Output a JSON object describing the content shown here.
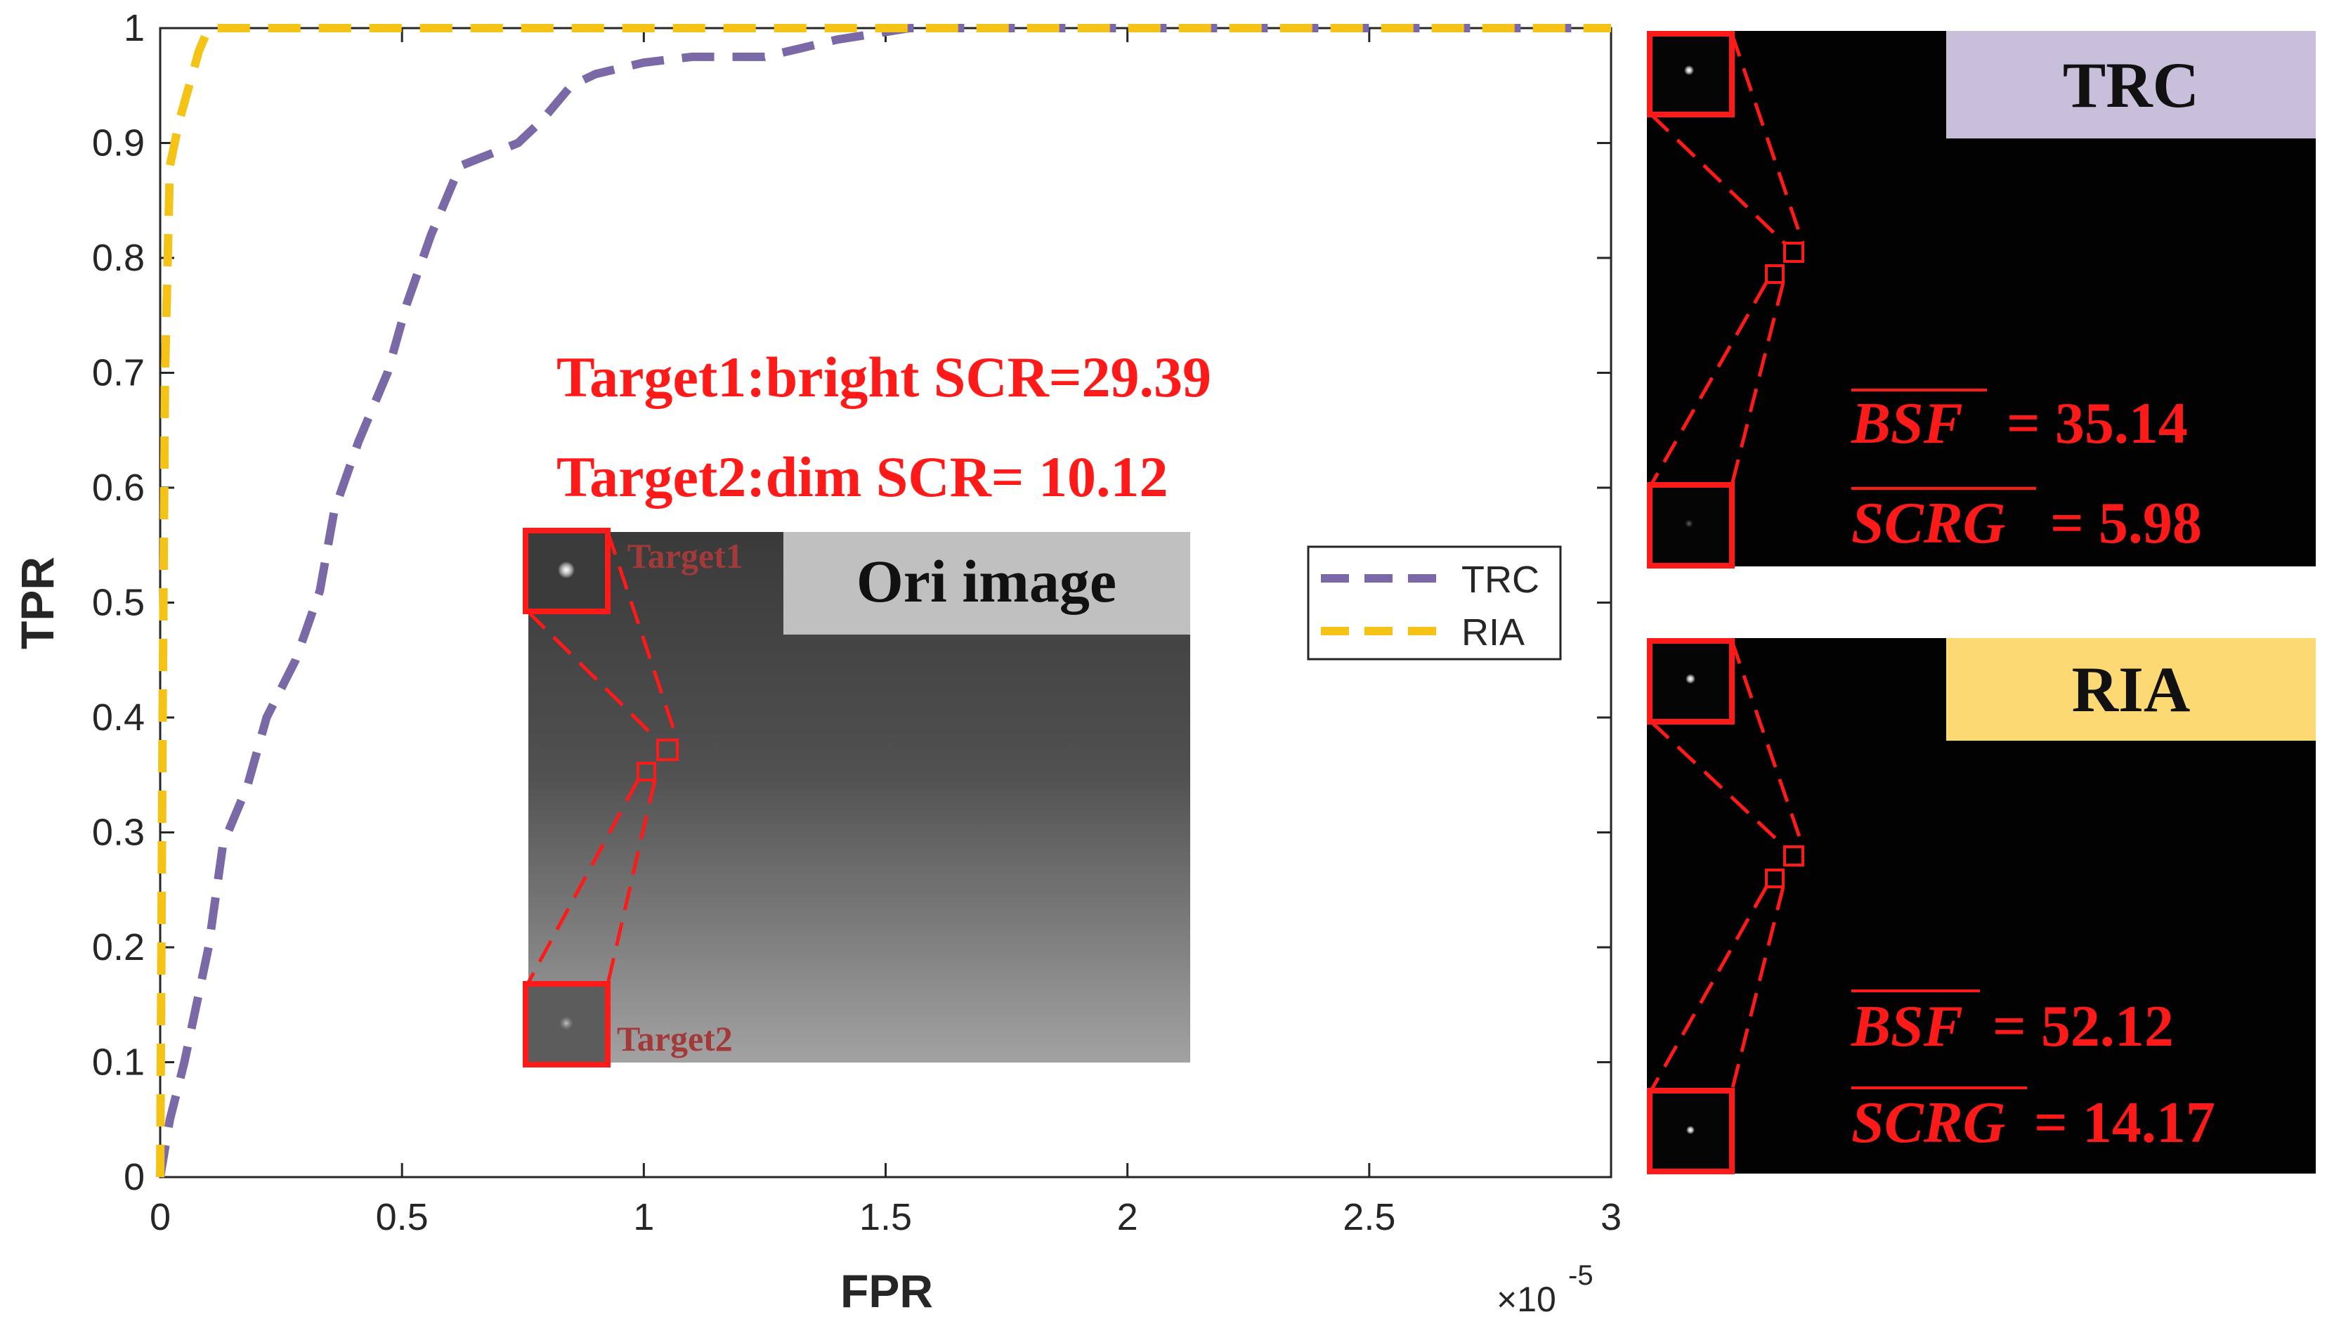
{
  "chart_data": {
    "type": "line",
    "xlabel": "FPR",
    "ylabel": "TPR",
    "x_exponent_base": "×10",
    "x_exponent_power": "-5",
    "xlim": [
      0,
      3
    ],
    "ylim": [
      0,
      1
    ],
    "x_ticks": [
      0,
      0.5,
      1,
      1.5,
      2,
      2.5,
      3
    ],
    "x_tick_labels": [
      "0",
      "0.5",
      "1",
      "1.5",
      "2",
      "2.5",
      "3"
    ],
    "y_ticks": [
      0,
      0.1,
      0.2,
      0.3,
      0.4,
      0.5,
      0.6,
      0.7,
      0.8,
      0.9,
      1
    ],
    "y_tick_labels": [
      "0",
      "0.1",
      "0.2",
      "0.3",
      "0.4",
      "0.5",
      "0.6",
      "0.7",
      "0.8",
      "0.9",
      "1"
    ],
    "grid": false,
    "legend_position": "right-middle",
    "series": [
      {
        "name": "TRC",
        "color": "#7b68a6",
        "x": [
          0,
          0.02,
          0.05,
          0.1,
          0.13,
          0.18,
          0.22,
          0.28,
          0.33,
          0.36,
          0.41,
          0.47,
          0.51,
          0.56,
          0.62,
          0.68,
          0.74,
          0.79,
          0.85,
          0.9,
          1.0,
          1.1,
          1.25,
          1.4,
          1.55,
          3.0
        ],
        "y": [
          0,
          0.05,
          0.1,
          0.2,
          0.29,
          0.34,
          0.4,
          0.45,
          0.51,
          0.58,
          0.64,
          0.7,
          0.76,
          0.82,
          0.88,
          0.89,
          0.9,
          0.92,
          0.95,
          0.96,
          0.97,
          0.975,
          0.975,
          0.99,
          1.0,
          1.0
        ]
      },
      {
        "name": "RIA",
        "color": "#f5c216",
        "x": [
          0,
          0.005,
          0.01,
          0.02,
          0.03,
          0.04,
          0.06,
          0.08,
          0.1,
          3.0
        ],
        "y": [
          0,
          0.4,
          0.7,
          0.88,
          0.9,
          0.92,
          0.95,
          0.98,
          1.0,
          1.0
        ]
      }
    ],
    "annotations": {
      "target1_line": "Target1:bright SCR=29.39",
      "target2_line": "Target2:dim SCR= 10.12",
      "ori_title": "Ori image",
      "target1_label": "Target1",
      "target2_label": "Target2"
    },
    "panels": [
      {
        "title": "TRC",
        "title_bg": "#c8c0db",
        "metric1_name": "BSF",
        "metric1_value": "= 35.14",
        "metric2_name": "SCRG",
        "metric2_value": "= 5.98"
      },
      {
        "title": "RIA",
        "title_bg": "#fcd972",
        "metric1_name": "BSF",
        "metric1_value": "= 52.12",
        "metric2_name": "SCRG",
        "metric2_value": "= 14.17"
      }
    ]
  }
}
